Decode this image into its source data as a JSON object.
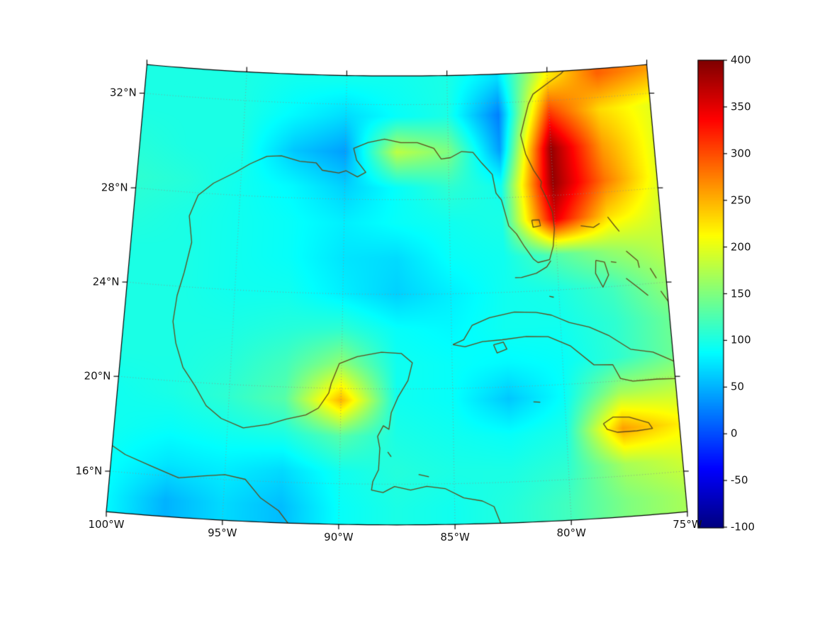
{
  "chart_data": {
    "type": "heatmap",
    "description": "Geographic filled-contour heatmap over the Gulf of Mexico, Florida, Cuba and the western Caribbean on a Lambert conformal conic projection, jet colormap, colorbar from -100 to 400. High values (red) along the Gulf Stream east of Florida; warm spots near Campeche and Jamaica; low (blue) patches in the northern and southwestern Gulf.",
    "projection": {
      "name": "lambert_conformal_conic",
      "central_longitude": -87.5,
      "standard_parallels": [
        18,
        31
      ],
      "reference_latitude": 24
    },
    "extent": {
      "lon_min": -100,
      "lon_max": -75,
      "lat_min": 14.3,
      "lat_max": 33.2
    },
    "value_range": [
      -100,
      400
    ],
    "colormap": "jet",
    "grid": {
      "lons": [
        -100,
        -97.5,
        -95,
        -92.5,
        -90,
        -87.5,
        -85,
        -82.5,
        -80,
        -77.5,
        -75
      ],
      "lats": [
        33,
        31.5,
        30,
        28.5,
        27,
        25.5,
        24,
        22.5,
        21,
        19.5,
        18,
        16.5,
        15
      ],
      "values": [
        [
          100,
          100,
          100,
          95,
          95,
          95,
          100,
          70,
          220,
          290,
          260
        ],
        [
          100,
          100,
          100,
          85,
          70,
          90,
          100,
          25,
          310,
          230,
          200
        ],
        [
          105,
          100,
          100,
          60,
          40,
          180,
          150,
          40,
          390,
          260,
          200
        ],
        [
          110,
          105,
          95,
          85,
          65,
          90,
          110,
          95,
          390,
          280,
          200
        ],
        [
          105,
          100,
          95,
          90,
          80,
          90,
          95,
          100,
          350,
          230,
          190
        ],
        [
          100,
          100,
          95,
          90,
          75,
          70,
          90,
          95,
          130,
          160,
          180
        ],
        [
          100,
          100,
          95,
          95,
          80,
          65,
          80,
          95,
          100,
          120,
          160
        ],
        [
          100,
          100,
          100,
          105,
          110,
          90,
          85,
          95,
          95,
          110,
          140
        ],
        [
          100,
          100,
          105,
          120,
          160,
          95,
          90,
          85,
          90,
          110,
          140
        ],
        [
          95,
          100,
          110,
          130,
          250,
          95,
          90,
          60,
          90,
          170,
          180
        ],
        [
          95,
          90,
          95,
          100,
          130,
          100,
          95,
          90,
          100,
          260,
          220
        ],
        [
          90,
          75,
          80,
          70,
          95,
          105,
          100,
          100,
          110,
          170,
          190
        ],
        [
          85,
          50,
          70,
          55,
          90,
          100,
          95,
          105,
          120,
          150,
          170
        ]
      ]
    },
    "axes": {
      "x_ticks": [
        {
          "lon": -100,
          "label": "100°W"
        },
        {
          "lon": -95,
          "label": "95°W"
        },
        {
          "lon": -90,
          "label": "90°W"
        },
        {
          "lon": -85,
          "label": "85°W"
        },
        {
          "lon": -80,
          "label": "80°W"
        },
        {
          "lon": -75,
          "label": "75°W"
        }
      ],
      "y_ticks": [
        {
          "lat": 32,
          "label": "32°N"
        },
        {
          "lat": 28,
          "label": "28°N"
        },
        {
          "lat": 24,
          "label": "24°N"
        },
        {
          "lat": 20,
          "label": "20°N"
        },
        {
          "lat": 16,
          "label": "16°N"
        }
      ]
    },
    "gridlines": {
      "lons": [
        -100,
        -95,
        -90,
        -85,
        -80,
        -75
      ],
      "lats": [
        16,
        20,
        24,
        28,
        32
      ],
      "style": "dotted"
    },
    "colorbar": {
      "min": -100,
      "max": 400,
      "ticks": [
        400,
        350,
        300,
        250,
        200,
        150,
        100,
        50,
        0,
        -50,
        -100
      ],
      "labels": [
        "400",
        "350",
        "300",
        "250",
        "200",
        "150",
        "100",
        "50",
        "0",
        "-50",
        "-100"
      ],
      "orientation": "vertical",
      "position": "right"
    },
    "styles": {
      "background": "#ffffff",
      "boundary_color": "#000000",
      "tick_color": "#000000",
      "gridline_color": "#8c8c8c",
      "coastline_color": "#5f4a1a",
      "label_color": "#141414"
    },
    "coastlines": [
      [
        [
          -83.0,
          14.2
        ],
        [
          -83.3,
          15.0
        ],
        [
          -83.8,
          15.25
        ],
        [
          -84.6,
          15.4
        ],
        [
          -85.4,
          15.8
        ],
        [
          -86.2,
          15.9
        ],
        [
          -86.9,
          15.75
        ],
        [
          -87.6,
          15.9
        ],
        [
          -88.1,
          15.65
        ],
        [
          -88.6,
          15.75
        ],
        [
          -88.55,
          16.1
        ],
        [
          -88.3,
          16.6
        ],
        [
          -88.25,
          17.5
        ],
        [
          -88.35,
          18.0
        ],
        [
          -88.1,
          18.45
        ],
        [
          -87.85,
          18.3
        ],
        [
          -87.75,
          19.0
        ],
        [
          -87.45,
          19.65
        ],
        [
          -87.0,
          20.35
        ],
        [
          -86.8,
          21.1
        ],
        [
          -87.3,
          21.5
        ],
        [
          -88.2,
          21.55
        ],
        [
          -89.3,
          21.35
        ],
        [
          -90.1,
          21.05
        ],
        [
          -90.45,
          20.2
        ],
        [
          -90.55,
          19.8
        ],
        [
          -91.0,
          19.15
        ],
        [
          -91.55,
          18.85
        ],
        [
          -92.4,
          18.65
        ],
        [
          -93.2,
          18.4
        ],
        [
          -94.3,
          18.2
        ],
        [
          -95.3,
          18.55
        ],
        [
          -96.0,
          19.05
        ],
        [
          -96.55,
          19.85
        ],
        [
          -97.15,
          20.6
        ],
        [
          -97.55,
          21.6
        ],
        [
          -97.75,
          22.5
        ],
        [
          -97.65,
          23.6
        ],
        [
          -97.4,
          24.6
        ],
        [
          -97.15,
          25.9
        ],
        [
          -97.35,
          27.0
        ],
        [
          -97.0,
          27.9
        ],
        [
          -96.3,
          28.45
        ],
        [
          -95.3,
          28.95
        ],
        [
          -94.6,
          29.35
        ],
        [
          -93.8,
          29.7
        ],
        [
          -93.1,
          29.75
        ],
        [
          -92.2,
          29.55
        ],
        [
          -91.4,
          29.5
        ],
        [
          -91.1,
          29.2
        ],
        [
          -90.3,
          29.1
        ],
        [
          -89.95,
          29.2
        ],
        [
          -89.4,
          28.95
        ],
        [
          -89.0,
          29.15
        ],
        [
          -89.45,
          29.65
        ],
        [
          -89.6,
          30.15
        ],
        [
          -88.9,
          30.4
        ],
        [
          -88.1,
          30.55
        ],
        [
          -87.3,
          30.4
        ],
        [
          -86.5,
          30.4
        ],
        [
          -85.7,
          30.15
        ],
        [
          -85.35,
          29.7
        ],
        [
          -84.9,
          29.75
        ],
        [
          -84.35,
          30.0
        ],
        [
          -83.8,
          29.95
        ],
        [
          -83.4,
          29.5
        ],
        [
          -82.9,
          29.0
        ],
        [
          -82.75,
          28.2
        ],
        [
          -82.5,
          27.9
        ],
        [
          -82.2,
          26.8
        ],
        [
          -81.85,
          26.45
        ],
        [
          -81.5,
          25.9
        ],
        [
          -81.1,
          25.35
        ],
        [
          -80.9,
          25.2
        ],
        [
          -80.35,
          25.3
        ],
        [
          -80.15,
          25.85
        ],
        [
          -80.05,
          26.6
        ],
        [
          -80.1,
          27.3
        ],
        [
          -80.35,
          27.9
        ],
        [
          -80.6,
          28.4
        ],
        [
          -80.55,
          28.6
        ],
        [
          -80.9,
          29.1
        ],
        [
          -81.25,
          29.8
        ],
        [
          -81.45,
          30.6
        ],
        [
          -81.25,
          31.2
        ],
        [
          -81.0,
          31.9
        ],
        [
          -80.75,
          32.3
        ],
        [
          -79.95,
          32.75
        ],
        [
          -79.3,
          33.1
        ],
        [
          -78.8,
          33.5
        ]
      ],
      [
        [
          -100.6,
          17.4
        ],
        [
          -99.4,
          16.75
        ],
        [
          -98.2,
          16.35
        ],
        [
          -97.0,
          15.95
        ],
        [
          -95.9,
          16.1
        ],
        [
          -95.0,
          16.2
        ],
        [
          -94.1,
          16.05
        ],
        [
          -93.4,
          15.3
        ],
        [
          -92.6,
          14.8
        ],
        [
          -92.1,
          14.2
        ]
      ],
      [
        [
          -84.95,
          21.85
        ],
        [
          -84.45,
          22.05
        ],
        [
          -84.05,
          22.65
        ],
        [
          -83.25,
          22.95
        ],
        [
          -82.1,
          23.15
        ],
        [
          -81.1,
          23.1
        ],
        [
          -80.4,
          22.95
        ],
        [
          -79.6,
          22.6
        ],
        [
          -78.7,
          22.35
        ],
        [
          -77.85,
          21.95
        ],
        [
          -76.9,
          21.3
        ],
        [
          -75.9,
          21.1
        ],
        [
          -75.1,
          20.7
        ],
        [
          -74.2,
          20.2
        ],
        [
          -74.85,
          19.9
        ],
        [
          -75.8,
          19.95
        ],
        [
          -76.9,
          19.95
        ],
        [
          -77.45,
          20.1
        ],
        [
          -77.75,
          20.7
        ],
        [
          -78.6,
          20.75
        ],
        [
          -79.6,
          21.6
        ],
        [
          -80.6,
          22.05
        ],
        [
          -81.6,
          22.1
        ],
        [
          -82.7,
          22.0
        ],
        [
          -83.6,
          21.95
        ],
        [
          -84.4,
          21.75
        ],
        [
          -84.95,
          21.85
        ]
      ],
      [
        [
          -78.35,
          18.25
        ],
        [
          -77.9,
          18.5
        ],
        [
          -77.2,
          18.45
        ],
        [
          -76.35,
          18.15
        ],
        [
          -76.2,
          17.9
        ],
        [
          -76.9,
          17.85
        ],
        [
          -77.75,
          17.85
        ],
        [
          -78.2,
          18.0
        ],
        [
          -78.35,
          18.25
        ]
      ],
      [
        [
          -83.1,
          21.8
        ],
        [
          -82.65,
          21.9
        ],
        [
          -82.5,
          21.6
        ],
        [
          -82.95,
          21.45
        ],
        [
          -83.1,
          21.8
        ]
      ],
      [
        [
          -80.3,
          25.25
        ],
        [
          -80.5,
          25.0
        ],
        [
          -81.0,
          24.75
        ],
        [
          -81.7,
          24.6
        ],
        [
          -82.0,
          24.6
        ]
      ],
      [
        [
          -81.1,
          27.0
        ],
        [
          -80.75,
          27.0
        ],
        [
          -80.7,
          26.75
        ],
        [
          -81.05,
          26.7
        ],
        [
          -81.1,
          27.0
        ]
      ],
      [
        [
          -78.8,
          26.65
        ],
        [
          -78.2,
          26.55
        ],
        [
          -77.9,
          26.7
        ]
      ],
      [
        [
          -77.5,
          26.95
        ],
        [
          -77.2,
          26.55
        ],
        [
          -77.0,
          26.3
        ]
      ],
      [
        [
          -78.2,
          25.15
        ],
        [
          -77.8,
          25.05
        ],
        [
          -77.65,
          24.5
        ],
        [
          -77.95,
          24.0
        ],
        [
          -78.25,
          24.6
        ],
        [
          -78.2,
          25.15
        ]
      ],
      [
        [
          -76.75,
          25.45
        ],
        [
          -76.25,
          25.0
        ],
        [
          -76.2,
          24.7
        ]
      ],
      [
        [
          -77.5,
          25.05
        ],
        [
          -77.25,
          25.0
        ]
      ],
      [
        [
          -76.85,
          24.3
        ],
        [
          -76.3,
          23.85
        ],
        [
          -75.9,
          23.5
        ]
      ],
      [
        [
          -75.7,
          24.65
        ],
        [
          -75.45,
          24.2
        ]
      ],
      [
        [
          -75.3,
          23.65
        ],
        [
          -74.95,
          23.1
        ]
      ],
      [
        [
          -80.45,
          23.75
        ],
        [
          -80.25,
          23.7
        ]
      ],
      [
        [
          -86.55,
          16.4
        ],
        [
          -86.1,
          16.3
        ]
      ],
      [
        [
          -81.4,
          19.33
        ],
        [
          -81.1,
          19.3
        ]
      ],
      [
        [
          -87.9,
          17.35
        ],
        [
          -87.75,
          17.15
        ]
      ]
    ]
  }
}
